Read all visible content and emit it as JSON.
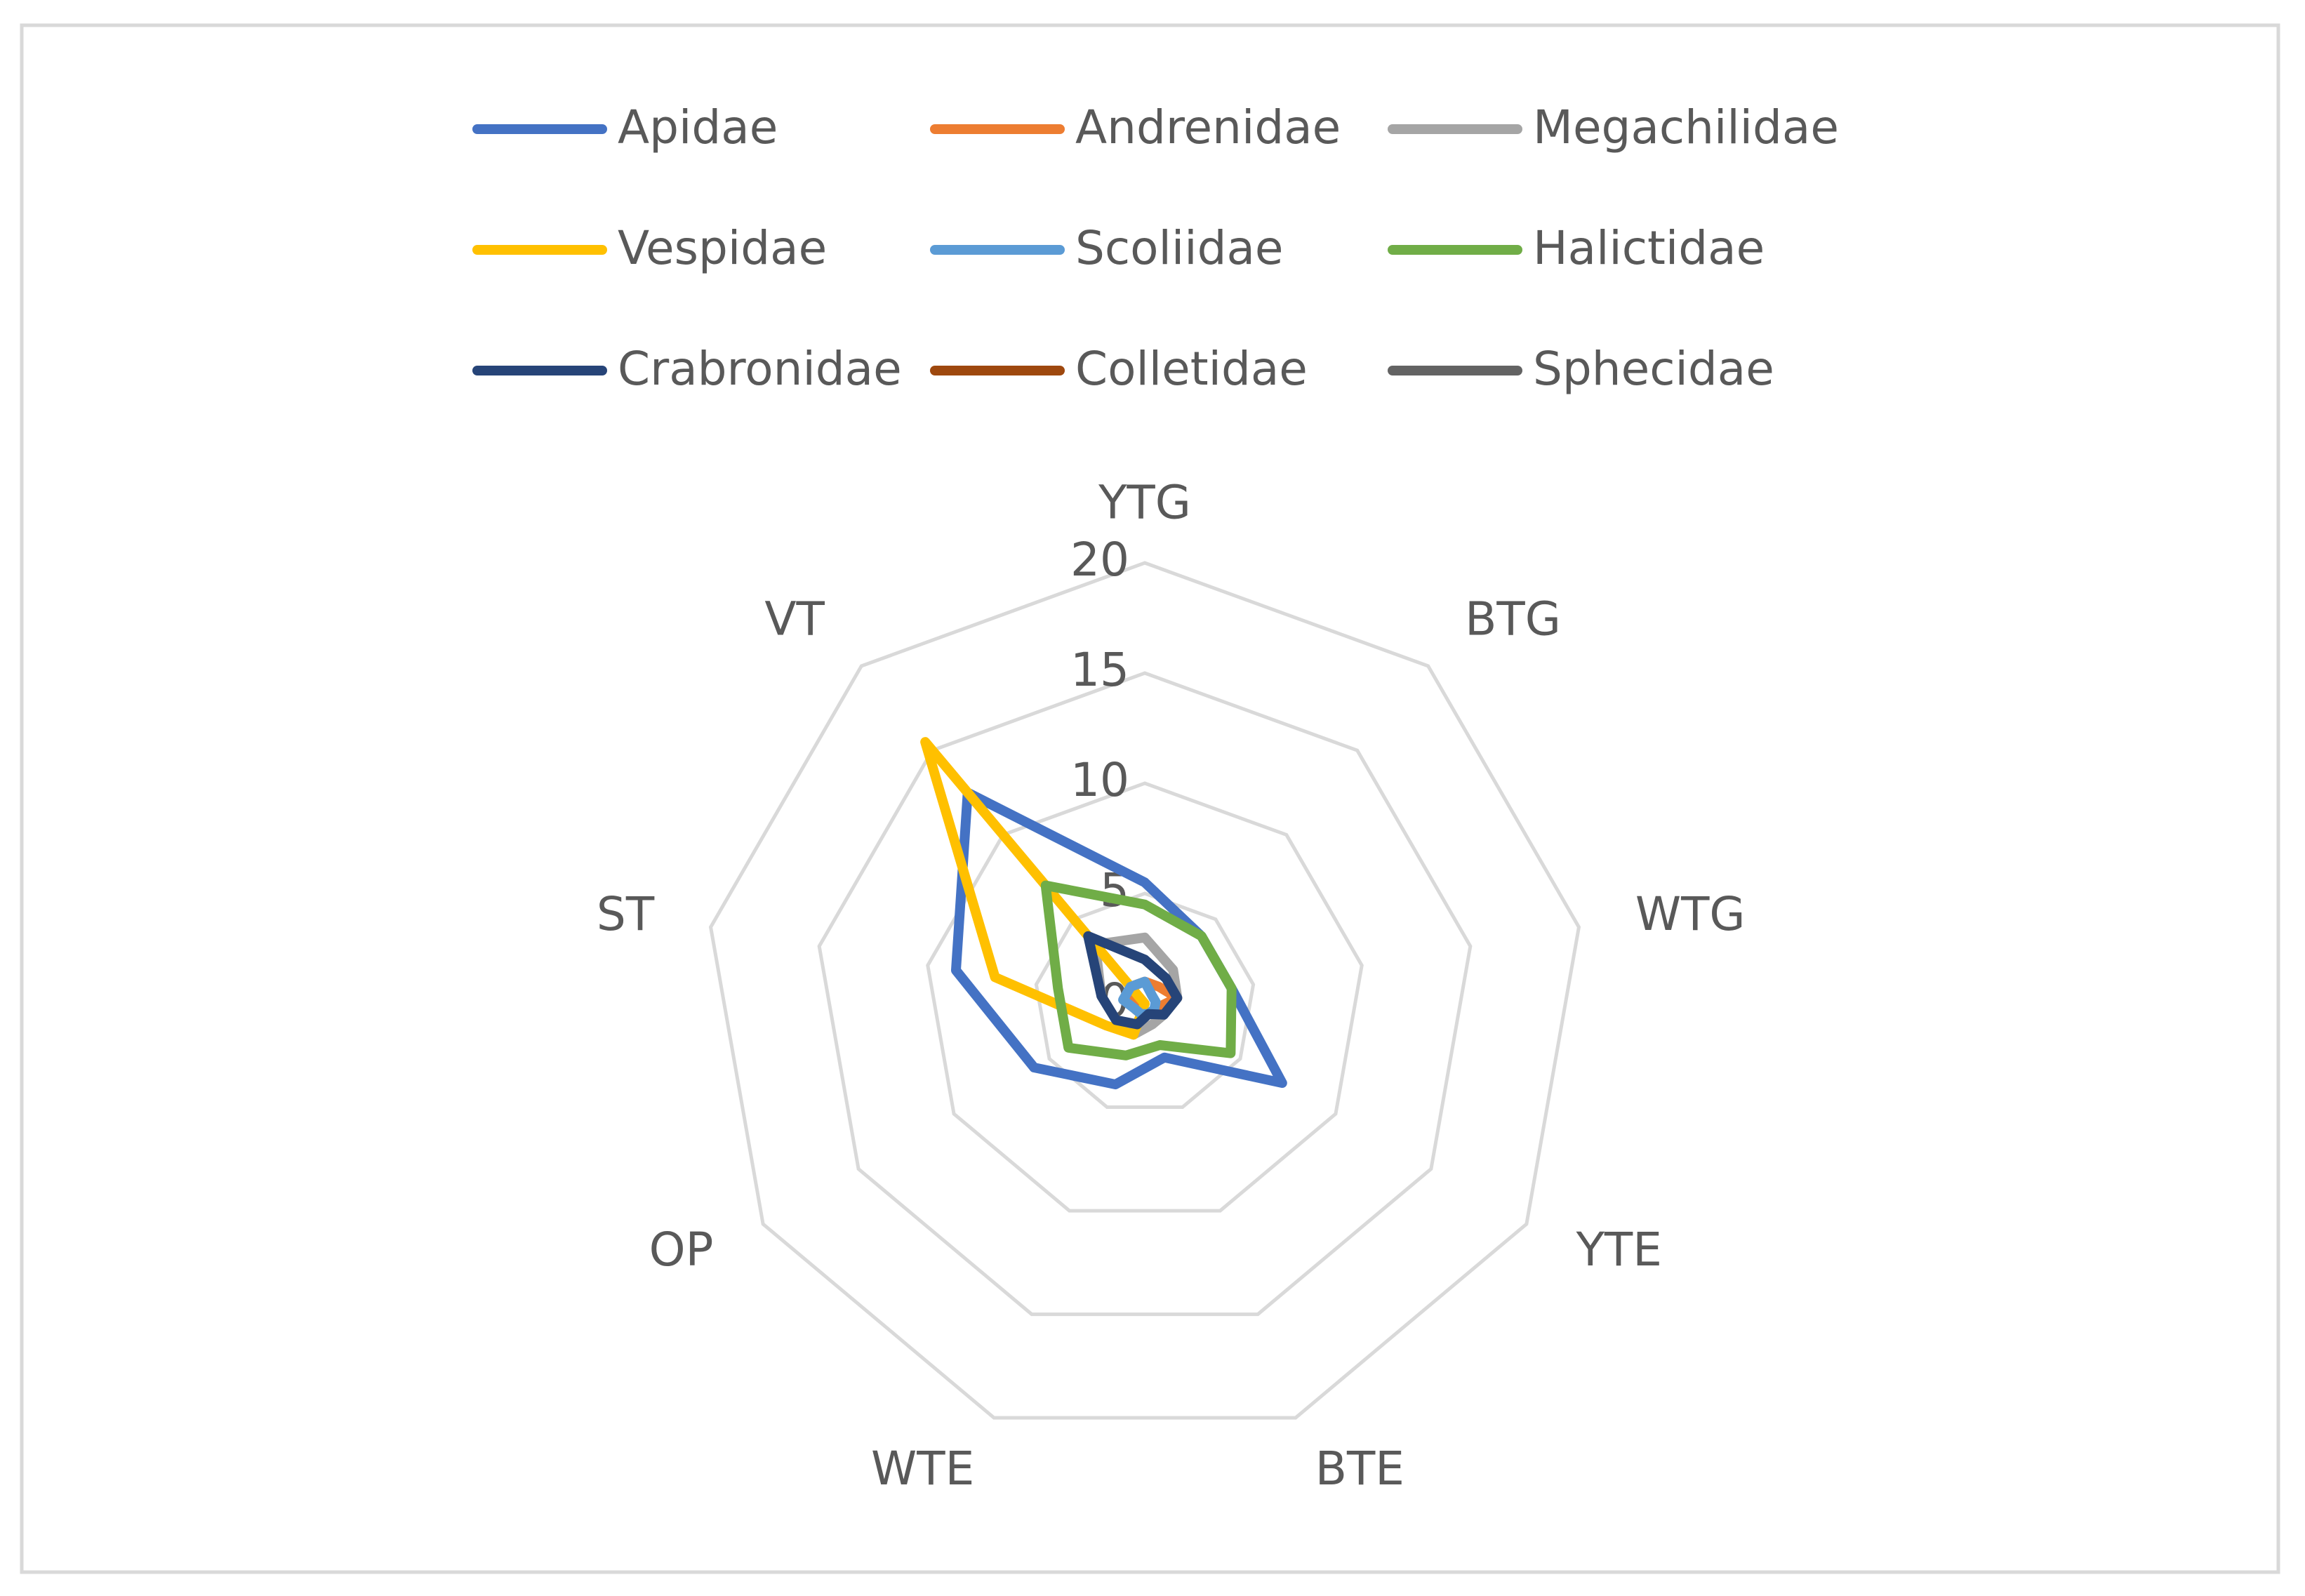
{
  "chart_data": {
    "type": "radar",
    "categories": [
      "YTG",
      "BTG",
      "WTG",
      "YTE",
      "BTE",
      "WTE",
      "OP",
      "ST",
      "VT"
    ],
    "ylim": [
      0,
      20
    ],
    "yticks": [
      0,
      5,
      10,
      15,
      20
    ],
    "grid": true,
    "series": [
      {
        "name": "Apidae",
        "color": "#4472c4",
        "values": [
          5.5,
          4,
          4,
          7.2,
          2.6,
          3.9,
          5.8,
          8.7,
          12.5
        ]
      },
      {
        "name": "Andrenidae",
        "color": "#ed7d31",
        "values": [
          1,
          1,
          1.5,
          0.5,
          0.5,
          0.5,
          0.5,
          0.5,
          1
        ]
      },
      {
        "name": "Megachilidae",
        "color": "#a5a5a5",
        "values": [
          3,
          2,
          1.5,
          1,
          1,
          1.5,
          1.5,
          2,
          3.5
        ]
      },
      {
        "name": "Vespidae",
        "color": "#ffc000",
        "values": [
          0,
          0,
          0,
          0,
          0,
          1.5,
          2,
          6.9,
          15.5
        ]
      },
      {
        "name": "Scoliidae",
        "color": "#5b9bd5",
        "values": [
          1,
          0.5,
          0.5,
          0.5,
          0.5,
          0.5,
          0.5,
          1,
          1
        ]
      },
      {
        "name": "Halictidae",
        "color": "#70ad47",
        "values": [
          4.5,
          4,
          4,
          4.5,
          2,
          2.5,
          4,
          4,
          7
        ]
      },
      {
        "name": "Crabronidae",
        "color": "#264478",
        "values": [
          2,
          1.5,
          1.5,
          1,
          0.5,
          1,
          1.5,
          2,
          4
        ]
      },
      {
        "name": "Colletidae",
        "color": "#9e480e",
        "values": [
          0,
          0,
          0,
          0,
          0,
          0,
          0,
          0,
          0
        ]
      },
      {
        "name": "Sphecidae",
        "color": "#636363",
        "values": [
          0,
          0,
          0,
          0,
          0,
          0,
          0,
          0,
          0
        ]
      }
    ]
  }
}
